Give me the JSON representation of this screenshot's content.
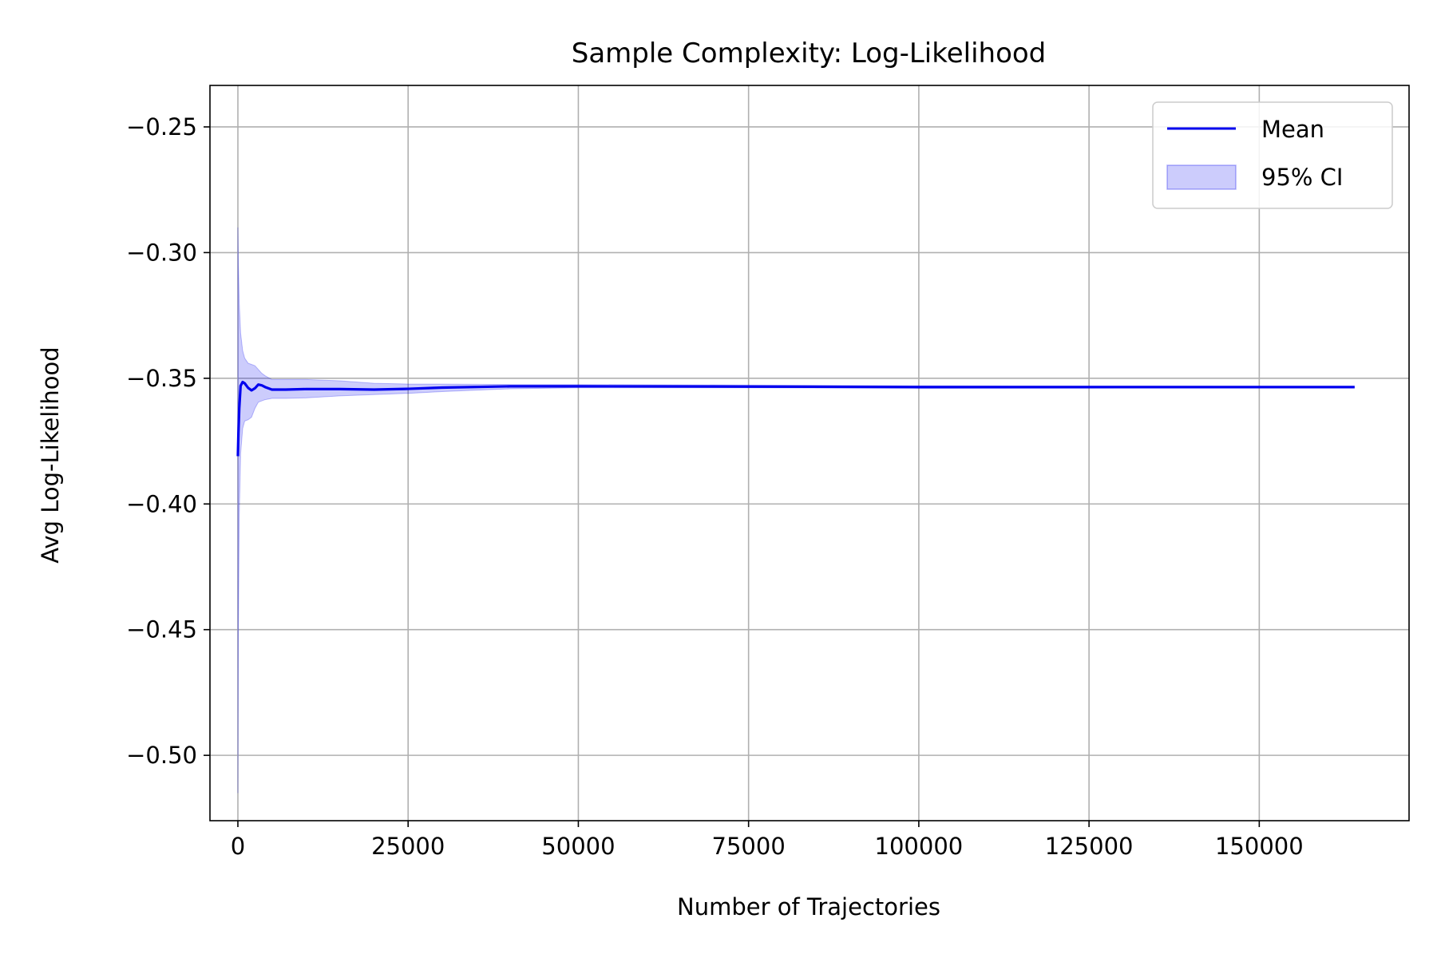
{
  "chart_data": {
    "type": "line",
    "title": "Sample Complexity: Log-Likelihood",
    "xlabel": "Number of Trajectories",
    "ylabel": "Avg Log-Likelihood",
    "xlim": [
      -4100,
      172000
    ],
    "ylim": [
      -0.526,
      -0.2335
    ],
    "xticks": [
      0,
      25000,
      50000,
      75000,
      100000,
      125000,
      150000
    ],
    "yticks": [
      -0.25,
      -0.3,
      -0.35,
      -0.4,
      -0.45,
      -0.5
    ],
    "xtick_labels": [
      "0",
      "25000",
      "50000",
      "75000",
      "100000",
      "125000",
      "150000"
    ],
    "ytick_labels": [
      "−0.25",
      "−0.30",
      "−0.35",
      "−0.40",
      "−0.45",
      "−0.50"
    ],
    "grid": true,
    "legend_position": "top-right",
    "series": [
      {
        "name": "Mean",
        "color": "#0000ee",
        "x": [
          0,
          80,
          200,
          400,
          700,
          1000,
          1500,
          2000,
          2500,
          3000,
          3500,
          4000,
          5000,
          7000,
          10000,
          15000,
          20000,
          25000,
          30000,
          40000,
          50000,
          75000,
          100000,
          125000,
          150000,
          164000
        ],
        "y": [
          -0.381,
          -0.372,
          -0.362,
          -0.353,
          -0.3515,
          -0.352,
          -0.3538,
          -0.3548,
          -0.354,
          -0.3525,
          -0.3528,
          -0.3535,
          -0.3545,
          -0.3545,
          -0.3543,
          -0.3543,
          -0.3545,
          -0.3542,
          -0.3537,
          -0.3532,
          -0.3532,
          -0.3533,
          -0.3535,
          -0.3535,
          -0.3535,
          -0.3535
        ]
      }
    ],
    "ci": {
      "name": "95% CI",
      "color": "#0000ee",
      "opacity": 0.2,
      "x": [
        0,
        80,
        200,
        400,
        700,
        1000,
        1500,
        2000,
        2500,
        3000,
        3500,
        4000,
        5000,
        7000,
        10000,
        15000,
        20000,
        25000,
        30000,
        40000,
        50000,
        75000,
        100000,
        125000,
        150000,
        164000
      ],
      "upper": [
        -0.29,
        -0.305,
        -0.32,
        -0.332,
        -0.339,
        -0.342,
        -0.344,
        -0.3445,
        -0.345,
        -0.3465,
        -0.348,
        -0.349,
        -0.3505,
        -0.3505,
        -0.3505,
        -0.351,
        -0.352,
        -0.3523,
        -0.3523,
        -0.3525,
        -0.3525,
        -0.3527,
        -0.353,
        -0.3531,
        -0.3532,
        -0.3532
      ],
      "lower": [
        -0.515,
        -0.45,
        -0.405,
        -0.38,
        -0.37,
        -0.367,
        -0.3665,
        -0.3655,
        -0.362,
        -0.3595,
        -0.359,
        -0.3585,
        -0.358,
        -0.358,
        -0.3578,
        -0.357,
        -0.3565,
        -0.356,
        -0.3553,
        -0.3542,
        -0.3538,
        -0.3538,
        -0.354,
        -0.3539,
        -0.3538,
        -0.3538
      ]
    }
  }
}
